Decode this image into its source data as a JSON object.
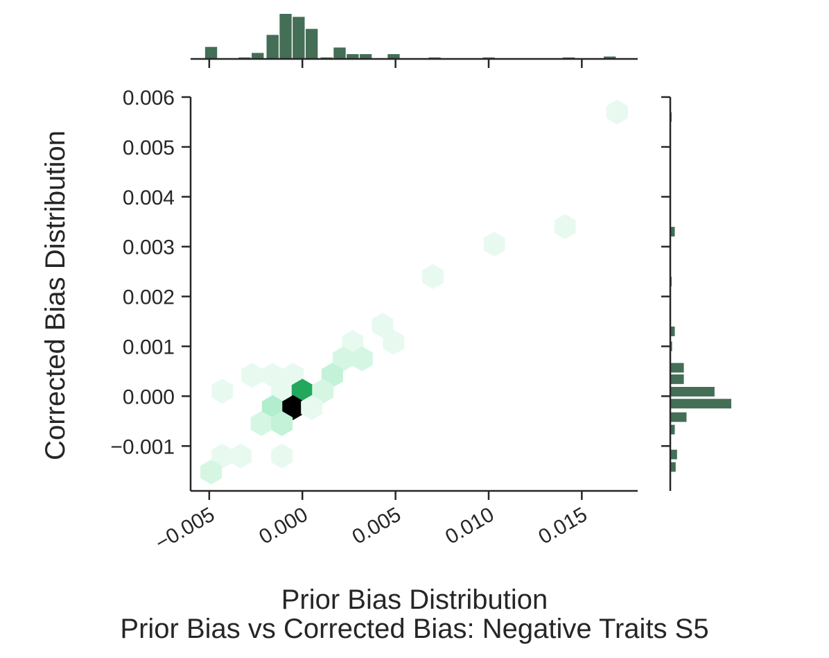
{
  "chart_data": {
    "type": "hexbin",
    "title": "Prior Bias vs Corrected Bias: Negative Traits S5",
    "xlabel": "Prior Bias Distribution",
    "ylabel": "Corrected Bias Distribution",
    "xlim": [
      -0.006,
      0.018
    ],
    "ylim": [
      -0.0019,
      0.006
    ],
    "xticks": [
      -0.005,
      0.0,
      0.005,
      0.01,
      0.015
    ],
    "xtick_labels": [
      "−0.005",
      "0.000",
      "0.005",
      "0.010",
      "0.015"
    ],
    "yticks": [
      -0.001,
      0.0,
      0.001,
      0.002,
      0.003,
      0.004,
      0.005,
      0.006
    ],
    "ytick_labels": [
      "−0.001",
      "0.000",
      "0.001",
      "0.002",
      "0.003",
      "0.004",
      "0.005",
      "0.006"
    ],
    "colors": {
      "marginal": "#446e56",
      "hex_low": "#e8faef",
      "hex_mid": "#a6ecc6",
      "hex_high": "#17a152",
      "hex_max": "#000000",
      "axis": "#262626"
    },
    "hexbins": [
      {
        "x": 0.0169,
        "y": 0.0057,
        "count": 1
      },
      {
        "x": 0.0141,
        "y": 0.0034,
        "count": 1
      },
      {
        "x": 0.0103,
        "y": 0.00305,
        "count": 1
      },
      {
        "x": 0.007,
        "y": 0.0024,
        "count": 1
      },
      {
        "x": 0.0043,
        "y": 0.00142,
        "count": 1
      },
      {
        "x": 0.0049,
        "y": 0.00108,
        "count": 1
      },
      {
        "x": 0.0027,
        "y": 0.00108,
        "count": 1
      },
      {
        "x": 0.0022,
        "y": 0.00075,
        "count": 2
      },
      {
        "x": 0.0032,
        "y": 0.00075,
        "count": 2
      },
      {
        "x": 0.0016,
        "y": 0.00042,
        "count": 3
      },
      {
        "x": -0.0027,
        "y": 0.00042,
        "count": 1
      },
      {
        "x": -0.0016,
        "y": 0.00042,
        "count": 1
      },
      {
        "x": -0.0005,
        "y": 0.00042,
        "count": 1
      },
      {
        "x": -0.0043,
        "y": 0.0001,
        "count": 1
      },
      {
        "x": -0.0011,
        "y": 0.0001,
        "count": 1
      },
      {
        "x": 0.0,
        "y": 0.0001,
        "count": 9
      },
      {
        "x": 0.0011,
        "y": 0.0001,
        "count": 2
      },
      {
        "x": -0.0016,
        "y": -0.00023,
        "count": 4
      },
      {
        "x": -0.0005,
        "y": -0.00023,
        "count": 13
      },
      {
        "x": 0.0005,
        "y": -0.00023,
        "count": 1
      },
      {
        "x": -0.0022,
        "y": -0.00055,
        "count": 2
      },
      {
        "x": -0.0011,
        "y": -0.00055,
        "count": 3
      },
      {
        "x": -0.0043,
        "y": -0.0012,
        "count": 1
      },
      {
        "x": -0.0033,
        "y": -0.0012,
        "count": 1
      },
      {
        "x": -0.0011,
        "y": -0.0012,
        "count": 1
      },
      {
        "x": -0.0049,
        "y": -0.00152,
        "count": 2
      }
    ],
    "marginal_x_hist": {
      "bin_width": 0.00072,
      "bins": [
        {
          "x": -0.0049,
          "count": 2
        },
        {
          "x": -0.0031,
          "count": 0.25
        },
        {
          "x": -0.0024,
          "count": 1
        },
        {
          "x": -0.0016,
          "count": 4
        },
        {
          "x": -0.0009,
          "count": 7.5
        },
        {
          "x": -0.0002,
          "count": 7
        },
        {
          "x": 0.0005,
          "count": 5
        },
        {
          "x": 0.0013,
          "count": 0.25
        },
        {
          "x": 0.002,
          "count": 1.9
        },
        {
          "x": 0.0027,
          "count": 0.8
        },
        {
          "x": 0.0034,
          "count": 0.8
        },
        {
          "x": 0.0049,
          "count": 0.8
        },
        {
          "x": 0.0071,
          "count": 0.25
        },
        {
          "x": 0.01,
          "count": 0.25
        },
        {
          "x": 0.0143,
          "count": 0.25
        },
        {
          "x": 0.0165,
          "count": 0.4
        }
      ]
    },
    "marginal_y_hist": {
      "bin_width": 0.00022,
      "bins": [
        {
          "y": 0.0056,
          "count": 0.3
        },
        {
          "y": 0.0033,
          "count": 1
        },
        {
          "y": 0.0023,
          "count": 0.3
        },
        {
          "y": 0.0013,
          "count": 1
        },
        {
          "y": 0.001,
          "count": 0.4
        },
        {
          "y": 0.00057,
          "count": 3
        },
        {
          "y": 0.00034,
          "count": 3
        },
        {
          "y": 9e-05,
          "count": 9.8
        },
        {
          "y": -0.00015,
          "count": 13.5
        },
        {
          "y": -0.00042,
          "count": 3.6
        },
        {
          "y": -0.00067,
          "count": 1
        },
        {
          "y": -0.00117,
          "count": 1.5
        },
        {
          "y": -0.00142,
          "count": 1.2
        }
      ]
    }
  }
}
